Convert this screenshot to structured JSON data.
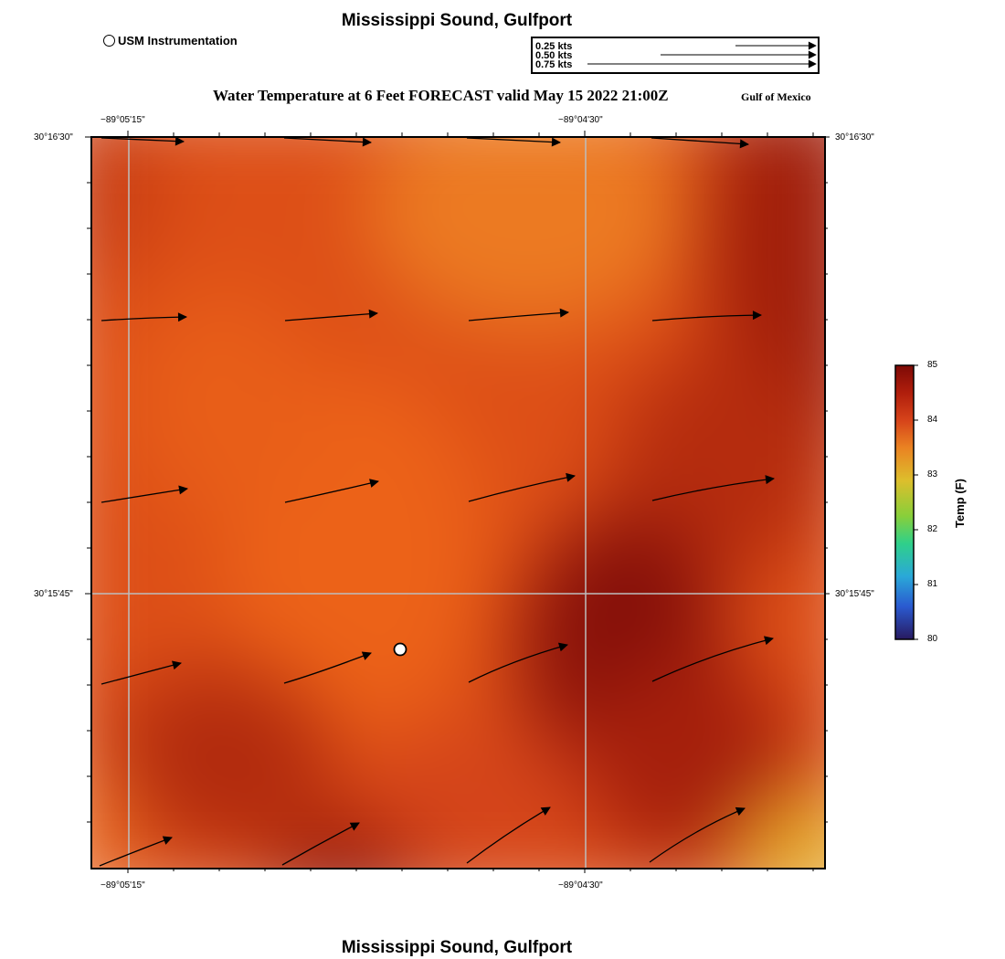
{
  "header": {
    "title": "Mississippi Sound, Gulfport"
  },
  "footer": {
    "title": "Mississippi Sound, Gulfport"
  },
  "legend": {
    "station_label": "USM Instrumentation",
    "vectors": [
      {
        "label": "0.25 kts",
        "speed": 0.25
      },
      {
        "label": "0.50 kts",
        "speed": 0.5
      },
      {
        "label": "0.75 kts",
        "speed": 0.75
      }
    ]
  },
  "map": {
    "title": "Water Temperature at 6 Feet FORECAST valid May 15 2022 21:00Z",
    "region_label": "Gulf of Mexico",
    "lon_ticks": [
      {
        "label": "−89°05'15\"",
        "lon": -89.0875
      },
      {
        "label": "−89°04'30\"",
        "lon": -89.075
      }
    ],
    "lat_ticks": [
      {
        "label": "30°16'30\"",
        "lat": 30.275
      },
      {
        "label": "30°15'45\"",
        "lat": 30.2625
      }
    ],
    "station": {
      "name": "USM Instrumentation"
    }
  },
  "colorbar": {
    "label": "Temp (F)",
    "min": 80,
    "max": 85,
    "ticks": [
      "85",
      "84",
      "83",
      "82",
      "81",
      "80"
    ],
    "colors": [
      "#7d0a06",
      "#c2260f",
      "#e8671c",
      "#e8a020",
      "#d8c82a",
      "#8fcf3a",
      "#2fd08a",
      "#2aa8d8",
      "#2a5ad0",
      "#281a60"
    ]
  }
}
